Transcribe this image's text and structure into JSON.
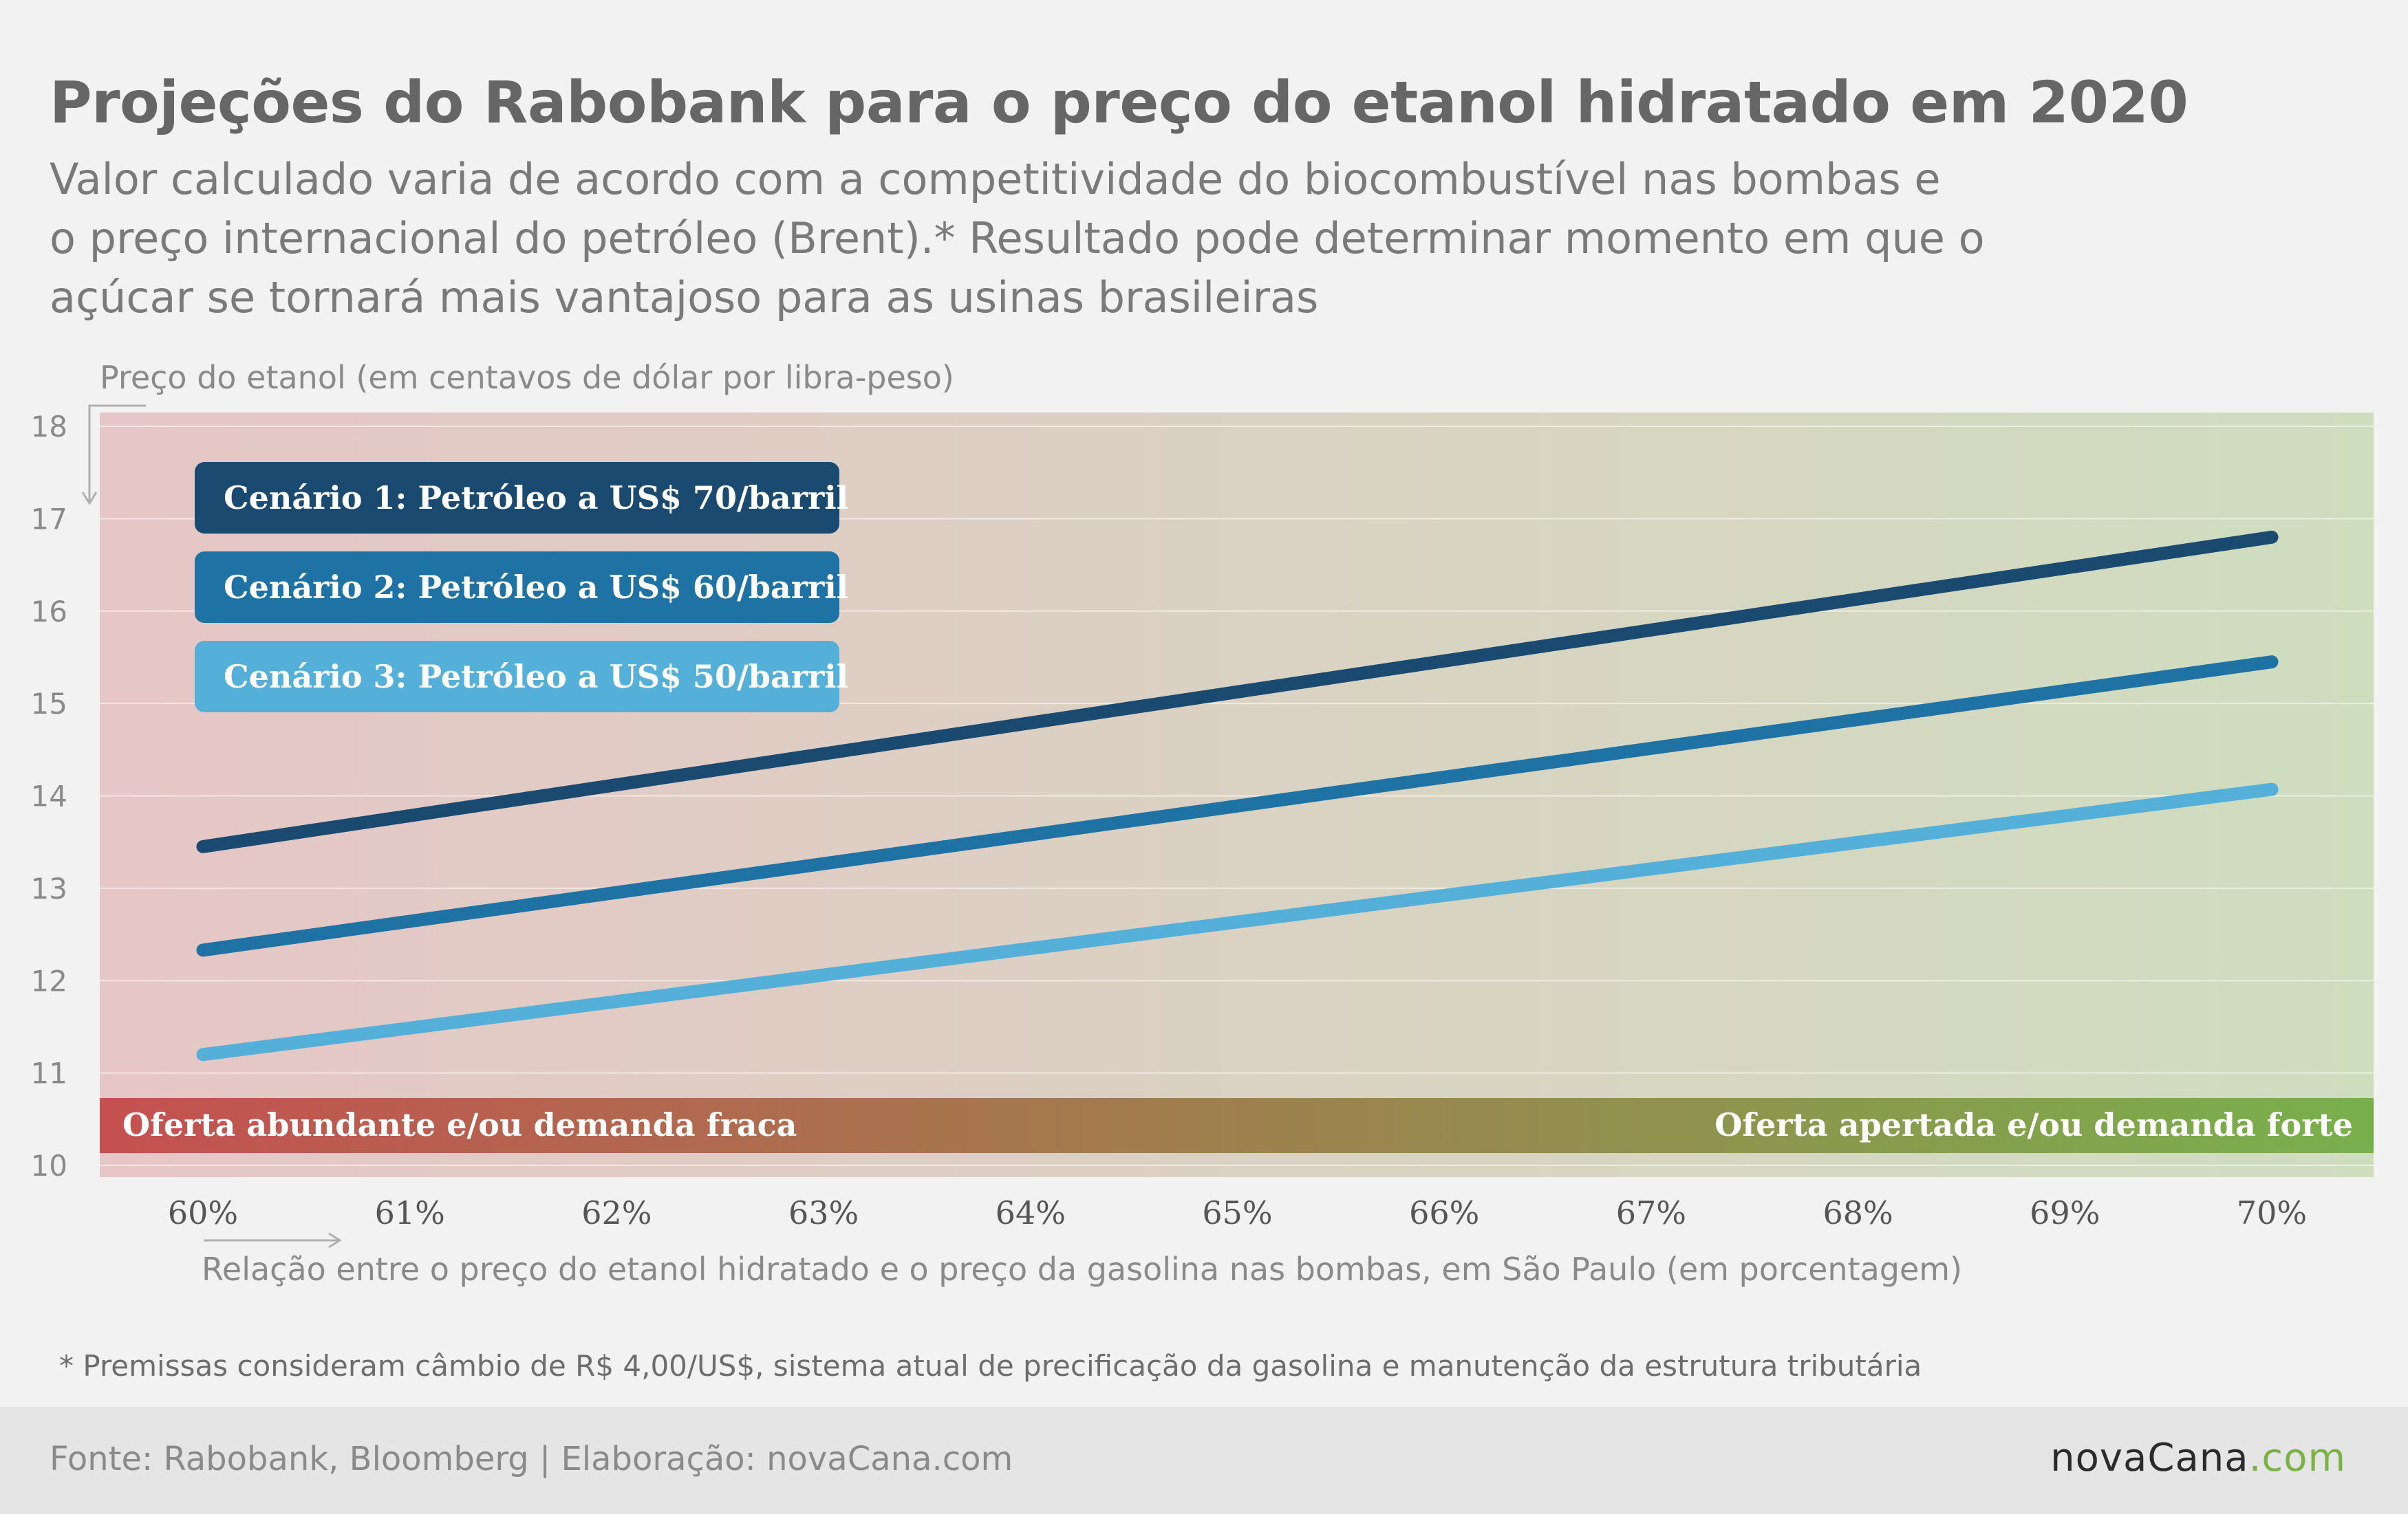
{
  "header": {
    "title": "Projeções do Rabobank para o preço do etanol hidratado em 2020",
    "subtitle_lines": [
      "Valor calculado varia de acordo com a competitividade do biocombustível nas bombas e",
      "o preço internacional do petróleo (Brent).* Resultado pode determinar momento em que o",
      "açúcar se tornará mais vantajoso para as usinas brasileiras"
    ]
  },
  "chart_data": {
    "type": "line",
    "ylabel": "Preço do etanol (em centavos de dólar por libra-peso)",
    "xlabel": "Relação entre o preço do etanol hidratado e o preço da gasolina nas bombas, em São Paulo (em porcentagem)",
    "x_ticks": [
      "60%",
      "61%",
      "62%",
      "63%",
      "64%",
      "65%",
      "66%",
      "67%",
      "68%",
      "69%",
      "70%"
    ],
    "y_ticks": [
      "10",
      "11",
      "12",
      "13",
      "14",
      "15",
      "16",
      "17",
      "18"
    ],
    "ylim": [
      10,
      18
    ],
    "x": [
      60,
      70
    ],
    "grid": true,
    "legend_position": "top-left",
    "series": [
      {
        "name": "Cenário 1: Petróleo a US$ 70/barril",
        "color": "#1a4a70",
        "values": [
          13.45,
          16.8
        ]
      },
      {
        "name": "Cenário 2: Petróleo a US$ 60/barril",
        "color": "#1f73a4",
        "values": [
          12.33,
          15.45
        ]
      },
      {
        "name": "Cenário 3: Petróleo a US$ 50/barril",
        "color": "#55b0d9",
        "values": [
          11.2,
          14.07
        ]
      }
    ],
    "band": {
      "left_label": "Oferta abundante e/ou demanda fraca",
      "right_label": "Oferta apertada e/ou demanda forte",
      "left_color": "#c55050",
      "right_color": "#78b04c"
    },
    "background_colors": [
      "#e6c6c6",
      "#cfddbf"
    ]
  },
  "footer": {
    "footnote": "* Premissas consideram câmbio de R$ 4,00/US$, sistema atual de precificação da gasolina e manutenção da estrutura tributária",
    "source": "Fonte: Rabobank, Bloomberg | Elaboração: novaCana.com",
    "logo_main": "novaCana",
    "logo_suffix": ".com"
  }
}
